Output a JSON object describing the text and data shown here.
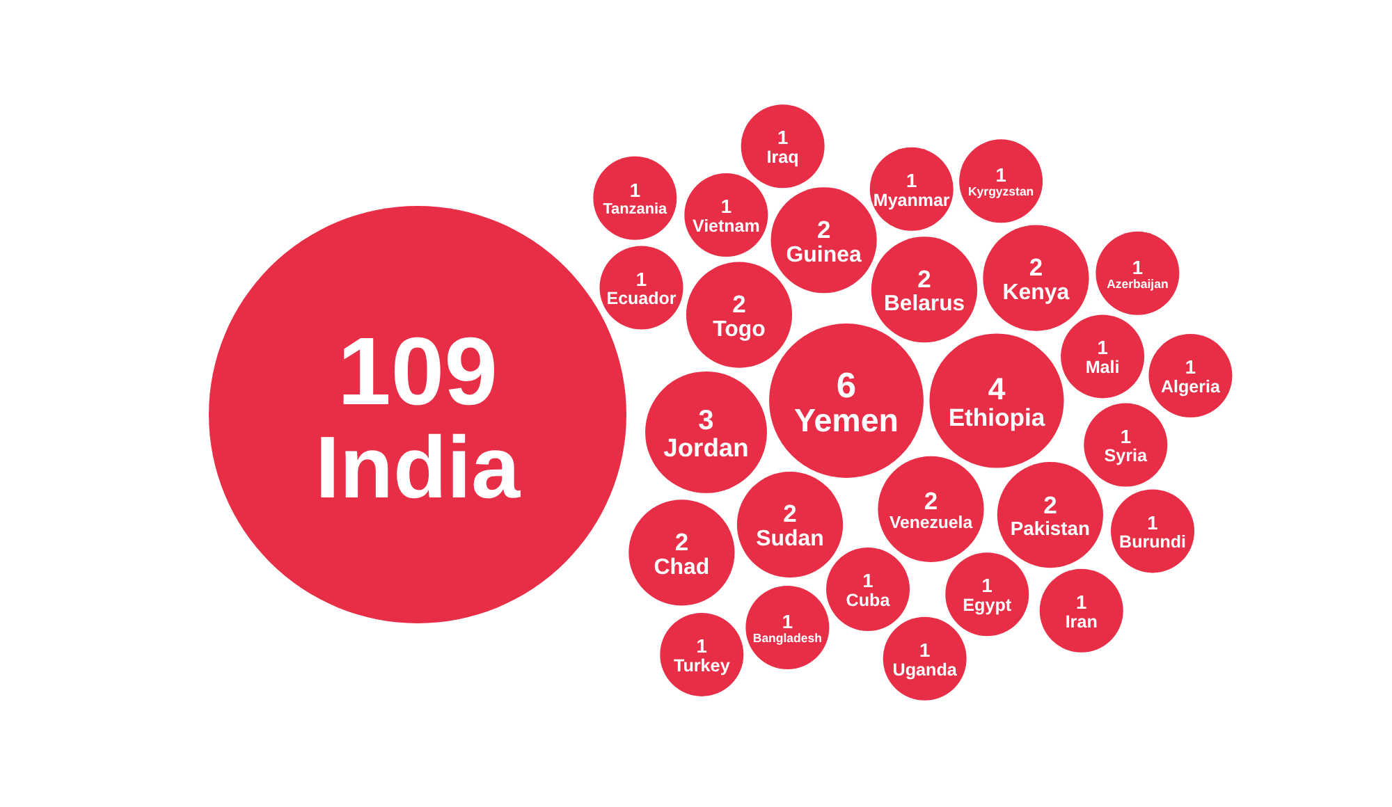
{
  "chart_data": {
    "type": "other",
    "categories": [
      "India",
      "Yemen",
      "Ethiopia",
      "Jordan",
      "Togo",
      "Venezuela",
      "Belarus",
      "Sudan",
      "Guinea",
      "Kenya",
      "Pakistan",
      "Chad",
      "Cuba",
      "Ecuador",
      "Mali",
      "Vietnam",
      "Syria",
      "Myanmar",
      "Egypt",
      "Bangladesh",
      "Kyrgyzstan",
      "Azerbaijan",
      "Tanzania",
      "Algeria",
      "Iraq",
      "Burundi",
      "Uganda",
      "Iran",
      "Turkey"
    ],
    "values": [
      109,
      6,
      4,
      3,
      2,
      2,
      2,
      2,
      2,
      2,
      2,
      2,
      1,
      1,
      1,
      1,
      1,
      1,
      1,
      1,
      1,
      1,
      1,
      1,
      1,
      1,
      1,
      1,
      1
    ],
    "color": "#e82d47",
    "data_labels": true
  }
}
